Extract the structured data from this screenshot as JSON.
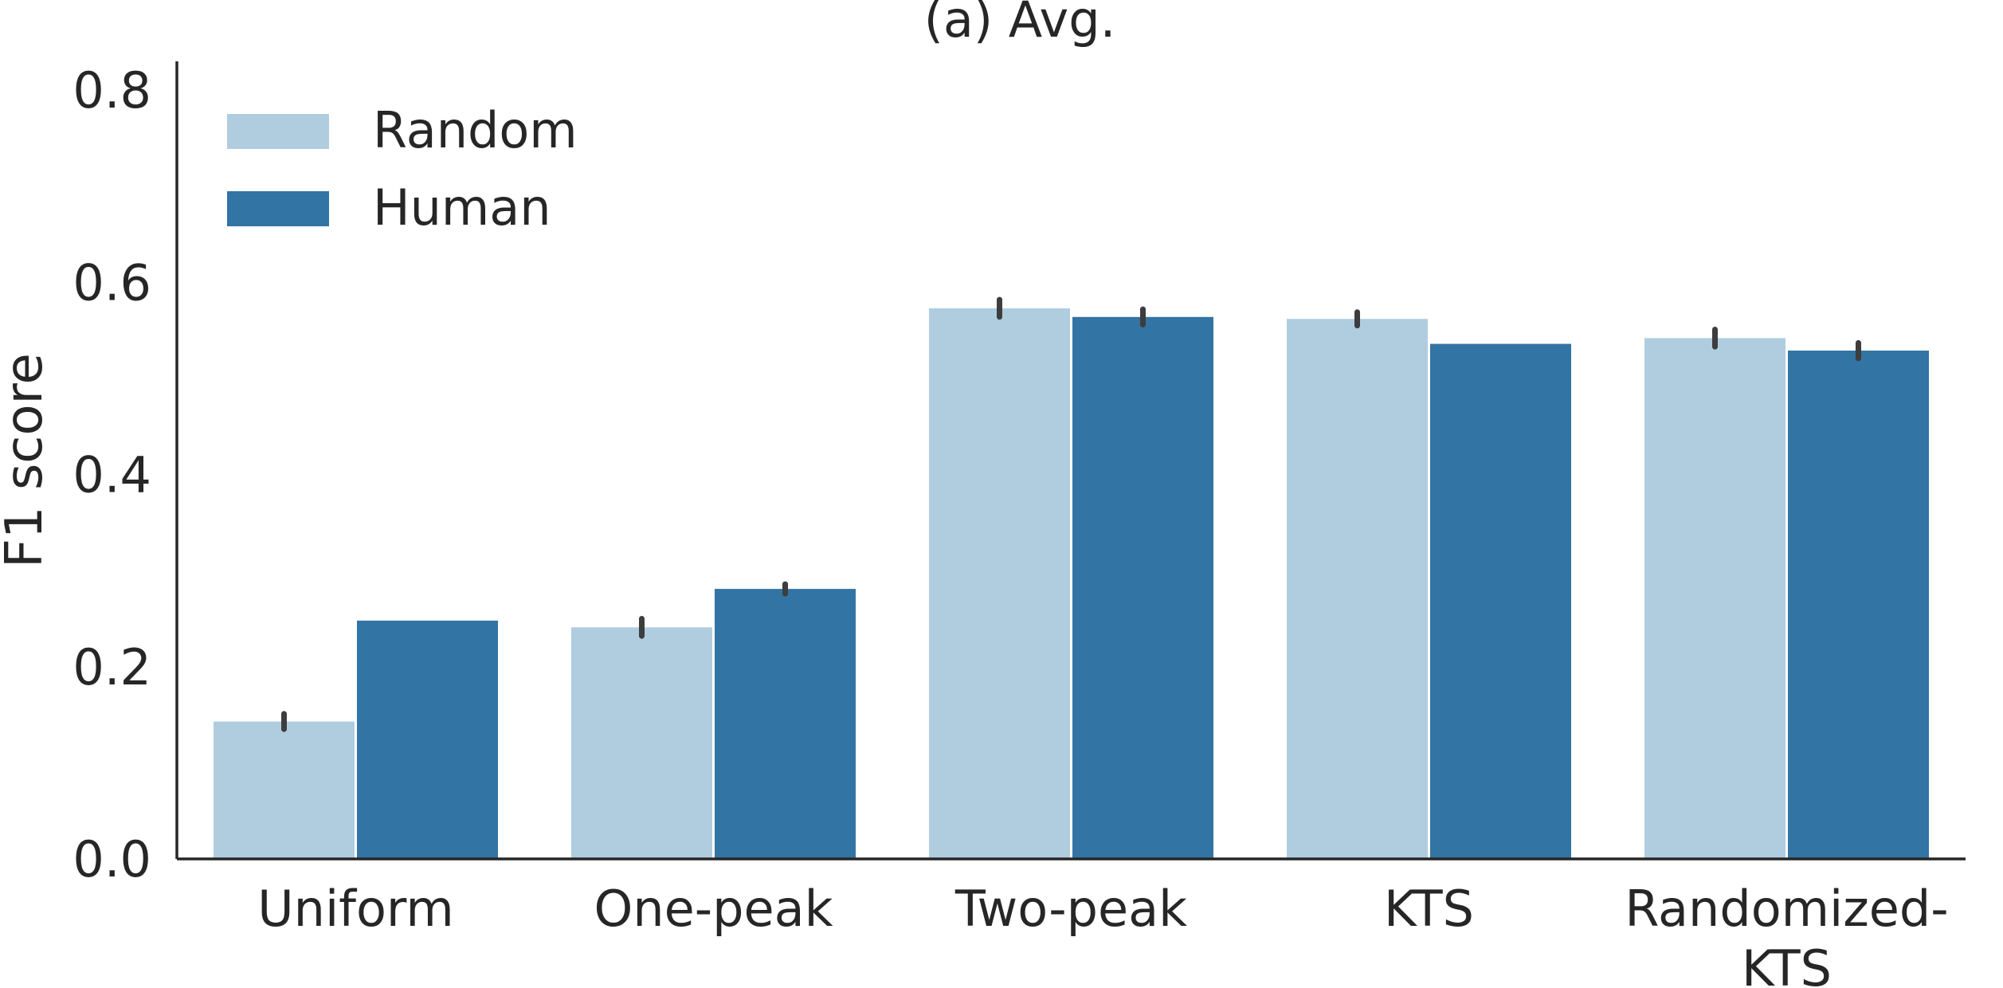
{
  "chart_data": {
    "type": "bar",
    "title": "(a) Avg.",
    "xlabel": "",
    "ylabel": "F1 score",
    "ylim": [
      0,
      0.83
    ],
    "yticks": [
      "0.0",
      "0.2",
      "0.4",
      "0.6",
      "0.8"
    ],
    "categories": [
      [
        "Uniform"
      ],
      [
        "One-peak"
      ],
      [
        "Two-peak"
      ],
      [
        "KTS"
      ],
      [
        "Randomized-",
        "KTS"
      ]
    ],
    "series": [
      {
        "name": "Random",
        "color": "#b0cde0",
        "values": [
          0.143,
          0.241,
          0.573,
          0.562,
          0.542
        ],
        "err": [
          0.008,
          0.009,
          0.009,
          0.007,
          0.009
        ]
      },
      {
        "name": "Human",
        "color": "#3274a3",
        "values": [
          0.248,
          0.281,
          0.564,
          0.536,
          0.529
        ],
        "err": [
          0,
          0.005,
          0.008,
          0,
          0.008
        ]
      }
    ],
    "grid": false,
    "legend": "top-left"
  }
}
